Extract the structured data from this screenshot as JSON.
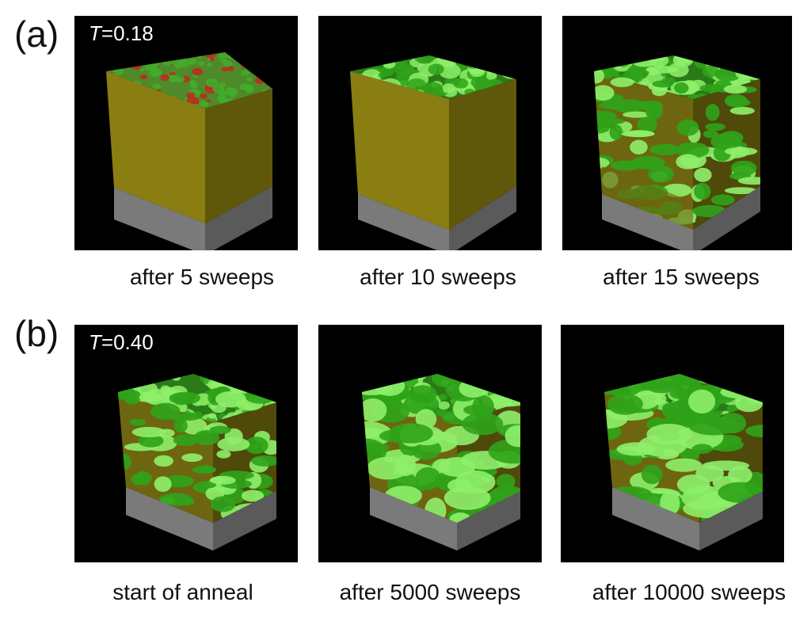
{
  "rows": [
    {
      "label": "(a)",
      "temperature_symbol": "T",
      "temperature_value": "=0.18",
      "panels": [
        {
          "caption": "after 5 sweeps",
          "stage": 0
        },
        {
          "caption": "after 10 sweeps",
          "stage": 1
        },
        {
          "caption": "after 15 sweeps",
          "stage": 2
        }
      ]
    },
    {
      "label": "(b)",
      "temperature_symbol": "T",
      "temperature_value": "=0.40",
      "panels": [
        {
          "caption": "start of anneal",
          "stage": 3
        },
        {
          "caption": "after 5000 sweeps",
          "stage": 4
        },
        {
          "caption": "after 10000 sweeps",
          "stage": 5
        }
      ]
    }
  ],
  "colors": {
    "background": "#000000",
    "yellow_face": "#8a7e12",
    "yellow_side": "#5f570a",
    "green_domain": "#2fa31a",
    "green_highlight": "#8ef06a",
    "red_speck": "#c0281e",
    "substrate": "#6e6e6e"
  }
}
